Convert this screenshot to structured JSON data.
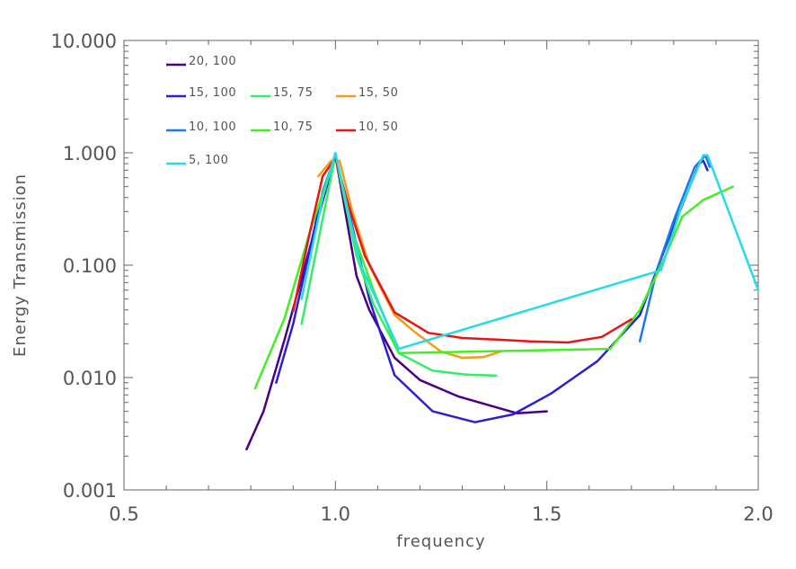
{
  "chart_data": {
    "type": "line",
    "title": "",
    "xlabel": "frequency",
    "ylabel": "Energy Transmission",
    "xlim": [
      0.5,
      2.0
    ],
    "ylim": [
      0.001,
      10.0
    ],
    "yscale": "log",
    "grid": false,
    "legend_position": "top-left",
    "x_ticks": [
      {
        "value": 0.5,
        "label": "0.5"
      },
      {
        "value": 1.0,
        "label": "1.0"
      },
      {
        "value": 1.5,
        "label": "1.5"
      },
      {
        "value": 2.0,
        "label": "2.0"
      }
    ],
    "y_ticks": [
      {
        "value": 0.001,
        "label": "0.001"
      },
      {
        "value": 0.01,
        "label": "0.010"
      },
      {
        "value": 0.1,
        "label": "0.100"
      },
      {
        "value": 1.0,
        "label": "1.000"
      },
      {
        "value": 10.0,
        "label": "10.000"
      }
    ],
    "series": [
      {
        "name": "20, 100",
        "color": "#4b0082",
        "legend_row": 0,
        "legend_col": 0,
        "points": [
          [
            0.79,
            0.0023
          ],
          [
            0.83,
            0.005
          ],
          [
            0.88,
            0.022
          ],
          [
            1.0,
            0.95
          ],
          [
            1.05,
            0.08
          ],
          [
            1.08,
            0.04
          ],
          [
            1.14,
            0.015
          ],
          [
            1.2,
            0.0095
          ],
          [
            1.29,
            0.0068
          ],
          [
            1.43,
            0.0048
          ],
          [
            1.5,
            0.005
          ]
        ]
      },
      {
        "name": "15, 100",
        "color": "#2b1ed6",
        "legend_row": 1,
        "legend_col": 0,
        "points": [
          [
            0.86,
            0.009
          ],
          [
            0.9,
            0.03
          ],
          [
            0.97,
            0.45
          ],
          [
            1.0,
            0.95
          ],
          [
            1.04,
            0.22
          ],
          [
            1.08,
            0.05
          ],
          [
            1.14,
            0.0105
          ],
          [
            1.23,
            0.005
          ],
          [
            1.33,
            0.004
          ],
          [
            1.42,
            0.0047
          ],
          [
            1.51,
            0.0072
          ],
          [
            1.62,
            0.014
          ],
          [
            1.72,
            0.036
          ],
          [
            1.79,
            0.18
          ],
          [
            1.86,
            0.8
          ],
          [
            1.87,
            0.85
          ],
          [
            1.88,
            0.7
          ]
        ]
      },
      {
        "name": "15, 75",
        "color": "#33ee66",
        "legend_row": 1,
        "legend_col": 1,
        "points": [
          [
            0.92,
            0.03
          ],
          [
            1.0,
            0.95
          ],
          [
            1.05,
            0.12
          ],
          [
            1.09,
            0.045
          ],
          [
            1.15,
            0.0165
          ],
          [
            1.23,
            0.0115
          ],
          [
            1.31,
            0.0106
          ],
          [
            1.38,
            0.0104
          ]
        ]
      },
      {
        "name": "15, 50",
        "color": "#f49b1a",
        "legend_row": 1,
        "legend_col": 2,
        "points": [
          [
            0.96,
            0.62
          ],
          [
            0.99,
            0.85
          ],
          [
            1.01,
            0.85
          ],
          [
            1.04,
            0.3
          ],
          [
            1.08,
            0.1
          ],
          [
            1.14,
            0.036
          ],
          [
            1.19,
            0.025
          ],
          [
            1.25,
            0.017
          ],
          [
            1.3,
            0.015
          ],
          [
            1.35,
            0.0152
          ],
          [
            1.39,
            0.017
          ]
        ]
      },
      {
        "name": "10, 100",
        "color": "#1f78e6",
        "legend_row": 2,
        "legend_col": 0,
        "points": [
          [
            1.72,
            0.021
          ],
          [
            1.76,
            0.09
          ],
          [
            1.8,
            0.25
          ],
          [
            1.85,
            0.75
          ],
          [
            1.875,
            0.95
          ],
          [
            1.885,
            0.75
          ]
        ]
      },
      {
        "name": "10, 75",
        "color": "#44ee22",
        "legend_row": 2,
        "legend_col": 1,
        "points": [
          [
            0.81,
            0.008
          ],
          [
            0.88,
            0.034
          ],
          [
            0.94,
            0.2
          ],
          [
            1.0,
            0.95
          ],
          [
            1.04,
            0.2
          ],
          [
            1.09,
            0.06
          ],
          [
            1.15,
            0.0165
          ],
          [
            1.65,
            0.018
          ],
          [
            1.72,
            0.04
          ],
          [
            1.78,
            0.12
          ],
          [
            1.82,
            0.27
          ],
          [
            1.87,
            0.38
          ],
          [
            1.94,
            0.5
          ]
        ]
      },
      {
        "name": "10, 50",
        "color": "#e81416",
        "legend_row": 2,
        "legend_col": 2,
        "points": [
          [
            0.9,
            0.039
          ],
          [
            0.94,
            0.2
          ],
          [
            0.97,
            0.62
          ],
          [
            1.0,
            0.9
          ],
          [
            1.03,
            0.35
          ],
          [
            1.07,
            0.12
          ],
          [
            1.14,
            0.038
          ],
          [
            1.22,
            0.025
          ],
          [
            1.3,
            0.0225
          ],
          [
            1.38,
            0.0218
          ],
          [
            1.46,
            0.021
          ],
          [
            1.55,
            0.0205
          ],
          [
            1.63,
            0.023
          ],
          [
            1.7,
            0.033
          ]
        ]
      },
      {
        "name": "5, 100",
        "color": "#22dde8",
        "legend_row": 3,
        "legend_col": 0,
        "points": [
          [
            0.92,
            0.05
          ],
          [
            0.97,
            0.4
          ],
          [
            1.0,
            1.0
          ],
          [
            1.03,
            0.3
          ],
          [
            1.06,
            0.1
          ],
          [
            1.15,
            0.018
          ],
          [
            1.77,
            0.09
          ],
          [
            1.82,
            0.35
          ],
          [
            1.87,
            0.95
          ],
          [
            1.88,
            0.95
          ],
          [
            1.93,
            0.3
          ],
          [
            2.0,
            0.06
          ]
        ]
      }
    ]
  }
}
